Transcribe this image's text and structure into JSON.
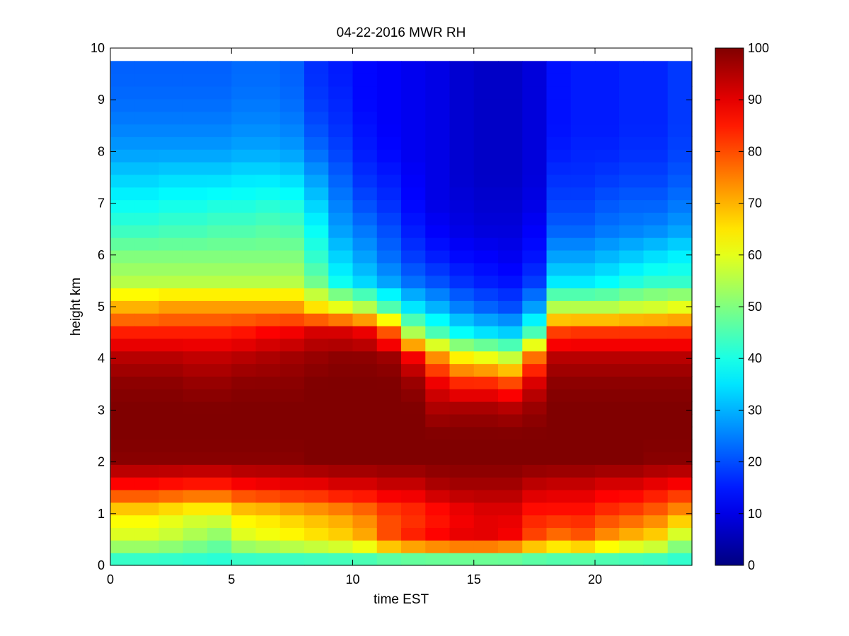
{
  "chart_data": {
    "type": "heatmap",
    "title": "04-22-2016 MWR RH",
    "xlabel": "time EST",
    "ylabel": "height km",
    "xlim": [
      0,
      24
    ],
    "ylim": [
      0,
      10
    ],
    "x_ticks": [
      "0",
      "5",
      "10",
      "15",
      "20"
    ],
    "y_ticks": [
      "0",
      "1",
      "2",
      "3",
      "4",
      "5",
      "6",
      "7",
      "8",
      "9",
      "10"
    ],
    "colorbar": {
      "range": [
        0,
        100
      ],
      "ticks": [
        "0",
        "10",
        "20",
        "30",
        "40",
        "50",
        "60",
        "70",
        "80",
        "90",
        "100"
      ],
      "colormap": "jet"
    },
    "grid": false,
    "x": [
      0.5,
      1.5,
      2.5,
      3.5,
      4.5,
      5.5,
      6.5,
      7.5,
      8.5,
      9.5,
      10.5,
      11.5,
      12.5,
      13.5,
      14.5,
      15.5,
      16.5,
      17.5,
      18.5,
      19.5,
      20.5,
      21.5,
      22.5,
      23.5
    ],
    "heights": [
      0.05,
      0.5,
      1.0,
      1.5,
      2.0,
      2.5,
      3.0,
      3.5,
      4.0,
      4.5,
      5.0,
      5.5,
      6.0,
      6.5,
      7.0,
      7.5,
      8.0,
      8.5,
      9.0,
      9.5,
      9.75
    ],
    "profiles": [
      [
        40,
        58,
        64,
        85,
        99,
        100,
        100,
        99,
        95,
        85,
        70,
        55,
        50,
        43,
        38,
        33,
        28,
        25,
        23,
        22,
        22
      ],
      [
        40,
        58,
        64,
        85,
        99,
        100,
        100,
        99,
        95,
        85,
        70,
        55,
        50,
        43,
        38,
        33,
        28,
        25,
        23,
        22,
        22
      ],
      [
        40,
        56,
        62,
        84,
        99,
        100,
        100,
        99,
        95,
        85,
        72,
        55,
        50,
        44,
        39,
        34,
        28,
        25,
        23,
        22,
        22
      ],
      [
        40,
        53,
        60,
        83,
        99,
        100,
        100,
        98,
        94,
        85,
        72,
        55,
        50,
        44,
        39,
        34,
        28,
        25,
        23,
        22,
        22
      ],
      [
        40,
        50,
        60,
        83,
        99,
        100,
        100,
        98,
        94,
        85,
        72,
        55,
        50,
        45,
        40,
        34,
        28,
        25,
        23,
        22,
        22
      ],
      [
        40,
        58,
        65,
        86,
        99,
        100,
        100,
        99,
        95,
        86,
        72,
        55,
        50,
        45,
        40,
        35,
        29,
        26,
        24,
        23,
        23
      ],
      [
        40,
        60,
        66,
        87,
        99,
        100,
        100,
        99,
        96,
        88,
        72,
        55,
        50,
        46,
        41,
        35,
        29,
        26,
        24,
        23,
        23
      ],
      [
        40,
        62,
        68,
        88,
        99,
        100,
        100,
        99,
        97,
        89,
        72,
        55,
        50,
        45,
        40,
        34,
        28,
        25,
        23,
        22,
        22
      ],
      [
        40,
        64,
        70,
        88,
        100,
        100,
        100,
        100,
        98,
        92,
        65,
        48,
        42,
        38,
        33,
        28,
        23,
        20,
        18,
        17,
        17
      ],
      [
        40,
        66,
        72,
        90,
        100,
        100,
        100,
        100,
        99,
        92,
        60,
        38,
        33,
        28,
        25,
        22,
        19,
        17,
        16,
        15,
        15
      ],
      [
        40,
        70,
        75,
        90,
        100,
        100,
        100,
        100,
        99,
        90,
        55,
        33,
        28,
        24,
        20,
        17,
        15,
        14,
        13,
        13,
        13
      ],
      [
        40,
        80,
        80,
        92,
        100,
        100,
        100,
        100,
        98,
        80,
        45,
        28,
        23,
        20,
        17,
        15,
        13,
        12,
        12,
        12,
        12
      ],
      [
        40,
        85,
        82,
        92,
        100,
        100,
        100,
        98,
        90,
        55,
        35,
        23,
        18,
        15,
        13,
        12,
        11,
        11,
        11,
        11,
        11
      ],
      [
        40,
        88,
        85,
        95,
        100,
        100,
        96,
        90,
        75,
        45,
        30,
        20,
        15,
        12,
        10,
        10,
        10,
        10,
        10,
        10,
        10
      ],
      [
        40,
        90,
        88,
        96,
        100,
        100,
        97,
        85,
        65,
        38,
        25,
        17,
        13,
        10,
        9,
        8,
        8,
        8,
        8,
        8,
        8
      ],
      [
        40,
        90,
        90,
        96,
        100,
        100,
        97,
        85,
        62,
        35,
        22,
        15,
        12,
        9,
        8,
        7,
        7,
        7,
        7,
        7,
        7
      ],
      [
        40,
        88,
        90,
        96,
        100,
        100,
        96,
        82,
        58,
        33,
        20,
        14,
        11,
        9,
        8,
        7,
        7,
        7,
        7,
        7,
        7
      ],
      [
        40,
        80,
        85,
        93,
        100,
        100,
        98,
        92,
        78,
        45,
        28,
        18,
        14,
        12,
        10,
        9,
        9,
        9,
        9,
        9,
        9
      ],
      [
        40,
        75,
        85,
        92,
        100,
        100,
        100,
        99,
        95,
        82,
        55,
        35,
        28,
        22,
        19,
        17,
        15,
        14,
        14,
        14,
        14
      ],
      [
        40,
        78,
        85,
        92,
        100,
        100,
        100,
        99,
        95,
        83,
        55,
        35,
        28,
        22,
        19,
        17,
        16,
        15,
        15,
        15,
        15
      ],
      [
        40,
        72,
        82,
        90,
        100,
        100,
        100,
        99,
        95,
        83,
        55,
        37,
        30,
        24,
        21,
        18,
        16,
        15,
        15,
        15,
        15
      ],
      [
        40,
        68,
        80,
        90,
        100,
        100,
        100,
        99,
        95,
        83,
        57,
        40,
        32,
        25,
        22,
        19,
        17,
        16,
        16,
        16,
        16
      ],
      [
        40,
        65,
        77,
        88,
        99,
        100,
        100,
        99,
        95,
        83,
        58,
        42,
        34,
        26,
        22,
        19,
        17,
        16,
        16,
        16,
        16
      ],
      [
        40,
        55,
        72,
        86,
        99,
        100,
        100,
        99,
        95,
        83,
        60,
        42,
        36,
        28,
        24,
        21,
        19,
        18,
        18,
        18,
        18
      ]
    ]
  }
}
